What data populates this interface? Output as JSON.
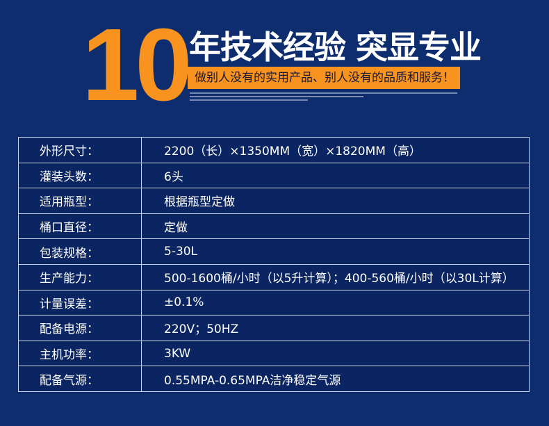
{
  "header": {
    "number": "10",
    "title": "年技术经验 突显专业",
    "slogan": "做别人没有的实用产品、别人没有的品质和服务！"
  },
  "colors": {
    "background": "#0d2d6e",
    "accent": "#f7931e",
    "table_bg": "#0a2562"
  },
  "specs": [
    {
      "label": "外形尺寸：",
      "value": " 2200（长）×1350MM（宽）×1820MM（高）"
    },
    {
      "label": "灌装头数：",
      "value": "6头"
    },
    {
      "label": "适用瓶型：",
      "value": "根据瓶型定做"
    },
    {
      "label": "桶口直径：",
      "value": "定做"
    },
    {
      "label": "包装规格：",
      "value": "5-30L"
    },
    {
      "label": "生产能力：",
      "value": "500-1600桶/小时（以5升计算）；400-560桶/小时（以30L计算）"
    },
    {
      "label": "计量误差：",
      "value": "±0.1%"
    },
    {
      "label": "配备电源：",
      "value": "220V；50HZ"
    },
    {
      "label": "主机功率：",
      "value": "3KW"
    },
    {
      "label": "配备气源：",
      "value": "0.55MPA-0.65MPA洁净稳定气源"
    }
  ]
}
